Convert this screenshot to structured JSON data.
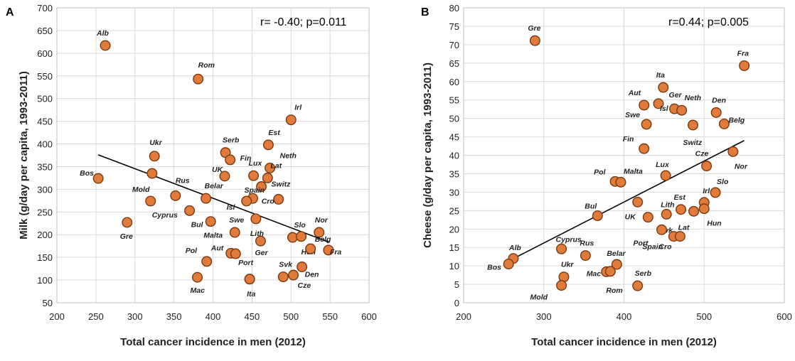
{
  "chart_data": [
    {
      "type": "scatter",
      "panel_label": "A",
      "annotation": "r= -0.40; p=0.011",
      "xlabel": "Total cancer incidence in men (2012)",
      "ylabel": "Milk (g/day per capita, 1993-2011)",
      "xlim": [
        200,
        600
      ],
      "ylim": [
        50,
        700
      ],
      "xticks": [
        "200",
        "250",
        "300",
        "350",
        "400",
        "450",
        "500",
        "550",
        "600"
      ],
      "yticks": [
        "50",
        "100",
        "150",
        "200",
        "250",
        "300",
        "350",
        "400",
        "450",
        "500",
        "550",
        "600",
        "650",
        "700"
      ],
      "grid": true,
      "trendline": {
        "x": [
          253,
          548
        ],
        "y": [
          376,
          184
        ]
      },
      "points": [
        {
          "label": "Alb",
          "x": 262,
          "y": 617
        },
        {
          "label": "Rom",
          "x": 381,
          "y": 543
        },
        {
          "label": "Irl",
          "x": 500,
          "y": 453
        },
        {
          "label": "Est",
          "x": 471,
          "y": 398
        },
        {
          "label": "Serb",
          "x": 416,
          "y": 381
        },
        {
          "label": "Ukr",
          "x": 325,
          "y": 373
        },
        {
          "label": "Fin",
          "x": 422,
          "y": 365
        },
        {
          "label": "Neth",
          "x": 473,
          "y": 347
        },
        {
          "label": "Mold",
          "x": 322,
          "y": 335
        },
        {
          "label": "Lux",
          "x": 452,
          "y": 330
        },
        {
          "label": "UK",
          "x": 415,
          "y": 329
        },
        {
          "label": "Bos",
          "x": 253,
          "y": 324
        },
        {
          "label": "Lat",
          "x": 470,
          "y": 325
        },
        {
          "label": "Switz",
          "x": 462,
          "y": 306
        },
        {
          "label": "Rus",
          "x": 352,
          "y": 286
        },
        {
          "label": "Belar",
          "x": 391,
          "y": 280
        },
        {
          "label": "Spain",
          "x": 451,
          "y": 280
        },
        {
          "label": "Isl",
          "x": 443,
          "y": 274
        },
        {
          "label": "Cro",
          "x": 484,
          "y": 278
        },
        {
          "label": "Cyprus",
          "x": 320,
          "y": 274
        },
        {
          "label": "Bul",
          "x": 370,
          "y": 253
        },
        {
          "label": "Malta",
          "x": 397,
          "y": 229
        },
        {
          "label": "Gre",
          "x": 290,
          "y": 227
        },
        {
          "label": "Lith",
          "x": 455,
          "y": 235
        },
        {
          "label": "Swe",
          "x": 428,
          "y": 205
        },
        {
          "label": "Nor",
          "x": 536,
          "y": 205
        },
        {
          "label": "Slo",
          "x": 502,
          "y": 194
        },
        {
          "label": "Hun",
          "x": 513,
          "y": 196
        },
        {
          "label": "Ger",
          "x": 461,
          "y": 186
        },
        {
          "label": "Fra",
          "x": 548,
          "y": 166
        },
        {
          "label": "Belg",
          "x": 525,
          "y": 169
        },
        {
          "label": "Aut",
          "x": 423,
          "y": 159
        },
        {
          "label": "Pol",
          "x": 392,
          "y": 141
        },
        {
          "label": "Aut",
          "x": 429,
          "y": 158
        },
        {
          "label": "Den",
          "x": 514,
          "y": 129
        },
        {
          "label": "Svk",
          "x": 490,
          "y": 107
        },
        {
          "label": "Cze",
          "x": 503,
          "y": 111
        },
        {
          "label": "Port",
          "x": 447,
          "y": 102
        },
        {
          "label": "Ita",
          "x": 447,
          "y": 102
        },
        {
          "label": "Mac",
          "x": 380,
          "y": 106
        }
      ]
    },
    {
      "type": "scatter",
      "panel_label": "B",
      "annotation": "r=0.44; p=0.005",
      "xlabel": "Total cancer incidence in men (2012)",
      "ylabel": "Cheese (g/day per capita, 1993-2011)",
      "xlim": [
        200,
        600
      ],
      "ylim": [
        0,
        80
      ],
      "xticks": [
        "200",
        "300",
        "400",
        "500",
        "600"
      ],
      "yticks": [
        "0",
        "5",
        "10",
        "15",
        "20",
        "25",
        "30",
        "35",
        "40",
        "45",
        "50",
        "55",
        "60",
        "65",
        "70",
        "75",
        "80"
      ],
      "grid": true,
      "trendline": {
        "x": [
          255,
          550
        ],
        "y": [
          11.2,
          44.0
        ]
      },
      "points": [
        {
          "label": "Gre",
          "x": 289,
          "y": 71.1
        },
        {
          "label": "Fra",
          "x": 550,
          "y": 64.3
        },
        {
          "label": "Ita",
          "x": 449,
          "y": 58.4
        },
        {
          "label": "Aut",
          "x": 425,
          "y": 53.6
        },
        {
          "label": "Isl",
          "x": 443,
          "y": 54.0
        },
        {
          "label": "Ger",
          "x": 463,
          "y": 52.6
        },
        {
          "label": "Neth",
          "x": 472,
          "y": 52.2
        },
        {
          "label": "Den",
          "x": 515,
          "y": 51.6
        },
        {
          "label": "Swe",
          "x": 428,
          "y": 48.4
        },
        {
          "label": "Switz",
          "x": 486,
          "y": 48.2
        },
        {
          "label": "Belg",
          "x": 525,
          "y": 48.5
        },
        {
          "label": "Fin",
          "x": 425,
          "y": 41.8
        },
        {
          "label": "Nor",
          "x": 536,
          "y": 41.0
        },
        {
          "label": "Cze",
          "x": 503,
          "y": 37.1
        },
        {
          "label": "Lux",
          "x": 452,
          "y": 34.5
        },
        {
          "label": "Pol",
          "x": 389,
          "y": 32.9
        },
        {
          "label": "Malta",
          "x": 396,
          "y": 32.7
        },
        {
          "label": "Slo",
          "x": 514,
          "y": 29.9
        },
        {
          "label": "Irl",
          "x": 500,
          "y": 27.2
        },
        {
          "label": "UK",
          "x": 417,
          "y": 27.3
        },
        {
          "label": "Est",
          "x": 471,
          "y": 25.3
        },
        {
          "label": "Lat",
          "x": 487,
          "y": 24.8
        },
        {
          "label": "Hun",
          "x": 500,
          "y": 25.5
        },
        {
          "label": "Bul",
          "x": 367,
          "y": 23.6
        },
        {
          "label": "Lith",
          "x": 453,
          "y": 24.0
        },
        {
          "label": "Svk",
          "x": 430,
          "y": 23.2
        },
        {
          "label": "Port",
          "x": 447,
          "y": 19.8
        },
        {
          "label": "Spain",
          "x": 462,
          "y": 18.0
        },
        {
          "label": "Cro",
          "x": 470,
          "y": 18.0
        },
        {
          "label": "Cyprus",
          "x": 322,
          "y": 14.6
        },
        {
          "label": "Rus",
          "x": 352,
          "y": 12.8
        },
        {
          "label": "Alb",
          "x": 262,
          "y": 12.0
        },
        {
          "label": "Bos",
          "x": 256,
          "y": 10.5
        },
        {
          "label": "Belar",
          "x": 391,
          "y": 10.4
        },
        {
          "label": "Mac",
          "x": 378,
          "y": 8.4
        },
        {
          "label": "Rom",
          "x": 383,
          "y": 8.5
        },
        {
          "label": "Ukr",
          "x": 325,
          "y": 7.0
        },
        {
          "label": "Mold",
          "x": 322,
          "y": 4.7
        },
        {
          "label": "Serb",
          "x": 417,
          "y": 4.6
        }
      ]
    }
  ]
}
